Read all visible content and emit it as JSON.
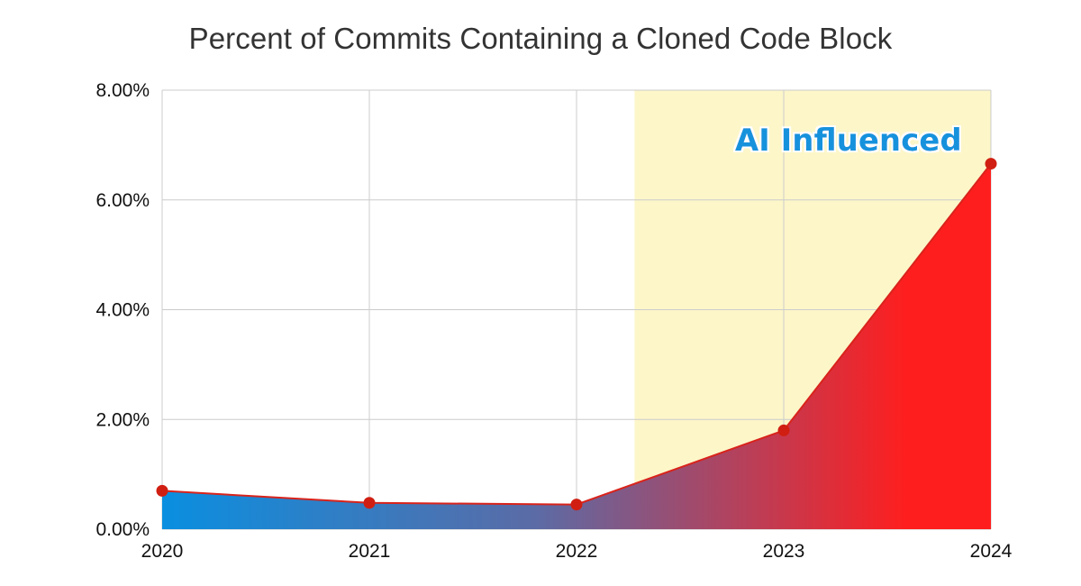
{
  "chart_data": {
    "type": "area",
    "title": "Percent of Commits Containing a Cloned Code Block",
    "xlabel": "",
    "ylabel": "",
    "x": [
      "2020",
      "2021",
      "2022",
      "2023",
      "2024"
    ],
    "series": [
      {
        "values": [
          0.7,
          0.48,
          0.45,
          1.8,
          6.66
        ]
      }
    ],
    "ylim": [
      0,
      8
    ],
    "yticks": [
      "0.00%",
      "2.00%",
      "4.00%",
      "6.00%",
      "8.00%"
    ],
    "ytick_values": [
      0,
      2,
      4,
      6,
      8
    ],
    "grid": true,
    "highlight_region": {
      "label": "AI Influenced",
      "x_start": 2022.28,
      "x_end": 2024,
      "color": "#FDF6C9"
    },
    "colors": {
      "fill_start": "#0A8FE0",
      "fill_end": "#FF1E1E",
      "line": "#D9231B",
      "marker": "#D01F12",
      "annotation_text": "#1592DD",
      "grid": "#CCCCCC"
    }
  }
}
